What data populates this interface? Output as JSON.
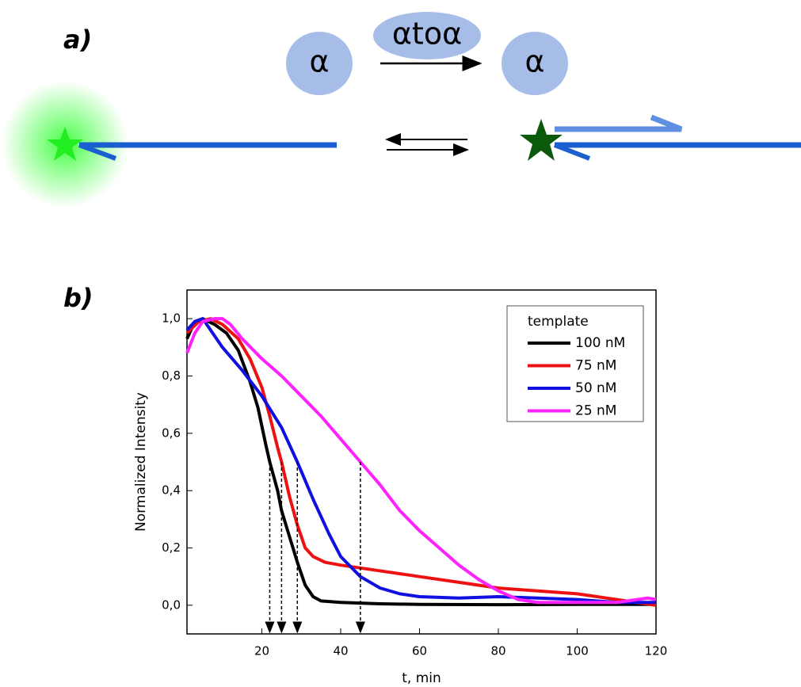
{
  "panel_labels": {
    "a": "a)",
    "b": "b)"
  },
  "diagram": {
    "left_circle": "α",
    "enzyme": "αtoα",
    "right_circle": "α"
  },
  "chart_data": {
    "type": "line",
    "x_label": "t, min",
    "y_label": "Normalized Intensity",
    "xlim": [
      1,
      120
    ],
    "ylim": [
      -0.1,
      1.1
    ],
    "xticks": [
      20,
      40,
      60,
      80,
      100,
      120
    ],
    "yticks": [
      {
        "value": 0,
        "label": "0,0"
      },
      {
        "value": 0.2,
        "label": "0,2"
      },
      {
        "value": 0.4,
        "label": "0,4"
      },
      {
        "value": 0.6,
        "label": "0,6"
      },
      {
        "value": 0.8,
        "label": "0,8"
      },
      {
        "value": 1,
        "label": "1,0"
      }
    ],
    "legend_title": "template",
    "legend_position": "upper right",
    "dashed_arrows": {
      "x": [
        22,
        25,
        29,
        45
      ],
      "y_start": 0.5
    },
    "series": [
      {
        "name": "100 nM",
        "color": "#000000",
        "x": [
          1,
          3,
          5,
          8,
          11,
          14,
          17,
          19,
          21,
          22,
          24,
          25,
          27,
          29,
          31,
          33,
          35,
          40,
          50,
          60,
          80,
          100,
          120
        ],
        "values": [
          0.93,
          0.99,
          1.0,
          0.98,
          0.95,
          0.89,
          0.78,
          0.69,
          0.56,
          0.5,
          0.4,
          0.33,
          0.24,
          0.15,
          0.07,
          0.03,
          0.015,
          0.01,
          0.005,
          0.003,
          0.002,
          0.003,
          0.003
        ]
      },
      {
        "name": "75 nM",
        "color": "#ee1111",
        "x": [
          1,
          4,
          7,
          10,
          14,
          17,
          20,
          22,
          24,
          25,
          27,
          29,
          31,
          33,
          36,
          40,
          50,
          60,
          70,
          80,
          90,
          100,
          110,
          120
        ],
        "values": [
          0.95,
          0.99,
          1.0,
          0.98,
          0.93,
          0.86,
          0.76,
          0.66,
          0.55,
          0.5,
          0.38,
          0.28,
          0.2,
          0.17,
          0.15,
          0.14,
          0.12,
          0.1,
          0.08,
          0.06,
          0.05,
          0.04,
          0.02,
          0.0
        ]
      },
      {
        "name": "50 nM",
        "color": "#1010e0",
        "x": [
          1,
          3,
          5,
          7,
          10,
          15,
          20,
          25,
          29,
          33,
          37,
          40,
          45,
          50,
          55,
          60,
          70,
          80,
          90,
          100,
          110,
          120
        ],
        "values": [
          0.96,
          0.99,
          1.0,
          0.96,
          0.9,
          0.82,
          0.73,
          0.62,
          0.5,
          0.37,
          0.25,
          0.17,
          0.1,
          0.06,
          0.04,
          0.03,
          0.025,
          0.03,
          0.025,
          0.02,
          0.01,
          0.01
        ]
      },
      {
        "name": "25 nM",
        "color": "#ff22ff",
        "x": [
          1,
          3,
          5,
          8,
          10,
          12,
          15,
          20,
          25,
          30,
          35,
          40,
          45,
          50,
          55,
          60,
          65,
          70,
          75,
          80,
          85,
          90,
          100,
          110,
          118,
          120
        ],
        "values": [
          0.88,
          0.95,
          0.99,
          1.0,
          1.0,
          0.98,
          0.93,
          0.86,
          0.8,
          0.73,
          0.66,
          0.58,
          0.5,
          0.42,
          0.33,
          0.26,
          0.2,
          0.14,
          0.09,
          0.05,
          0.02,
          0.01,
          0.01,
          0.01,
          0.025,
          0.02
        ]
      }
    ]
  }
}
